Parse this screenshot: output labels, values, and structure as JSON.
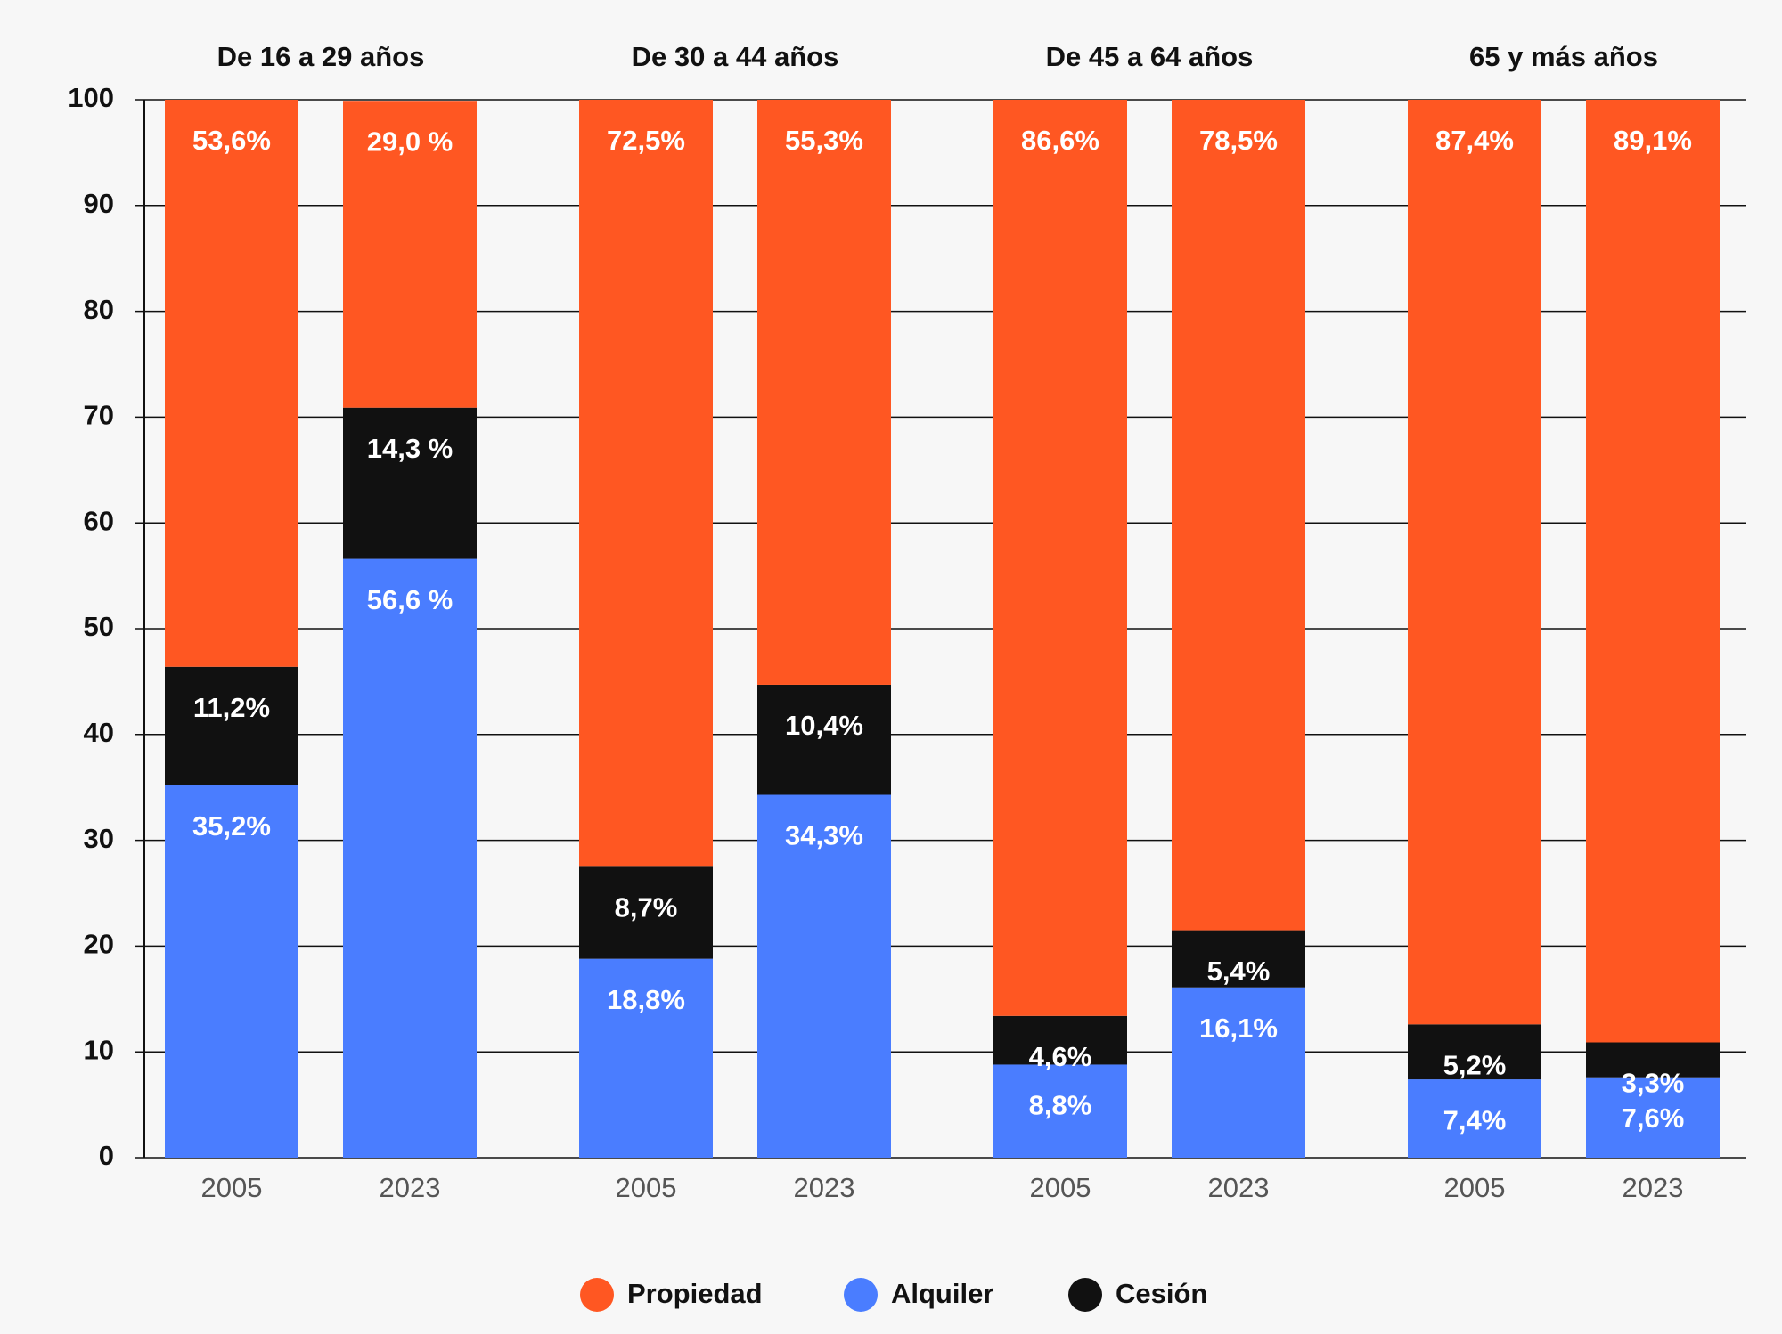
{
  "chart_data": {
    "type": "stacked_bar",
    "groups": [
      "De 16 a 29 años",
      "De 30 a 44 años",
      "De 45 a 64 años",
      "65 y más años"
    ],
    "categories": [
      "2005",
      "2023",
      "2005",
      "2023",
      "2005",
      "2023",
      "2005",
      "2023"
    ],
    "series": [
      {
        "name": "Alquiler",
        "color": "#4a7dff",
        "values": [
          35.2,
          56.6,
          18.8,
          34.3,
          8.8,
          16.1,
          7.4,
          7.6
        ],
        "value_labels": [
          "35,2%",
          "56,6 %",
          "18,8%",
          "34,3%",
          "8,8%",
          "16,1%",
          "7,4%",
          "7,6%"
        ]
      },
      {
        "name": "Cesión",
        "color": "#111111",
        "values": [
          11.2,
          14.3,
          8.7,
          10.4,
          4.6,
          5.4,
          5.2,
          3.3
        ],
        "value_labels": [
          "11,2%",
          "14,3 %",
          "8,7%",
          "10,4%",
          "4,6%",
          "5,4%",
          "5,2%",
          "3,3%"
        ]
      },
      {
        "name": "Propiedad",
        "color": "#ff5722",
        "values": [
          53.6,
          29.0,
          72.5,
          55.3,
          86.6,
          78.5,
          87.4,
          89.1
        ],
        "value_labels": [
          "53,6%",
          "29,0 %",
          "72,5%",
          "55,3%",
          "86,6%",
          "78,5%",
          "87,4%",
          "89,1%"
        ]
      }
    ],
    "legend_order": [
      2,
      0,
      1
    ],
    "ylim": [
      0,
      100
    ],
    "yticks": [
      0,
      10,
      20,
      30,
      40,
      50,
      60,
      70,
      80,
      90,
      100
    ],
    "grid": true
  }
}
